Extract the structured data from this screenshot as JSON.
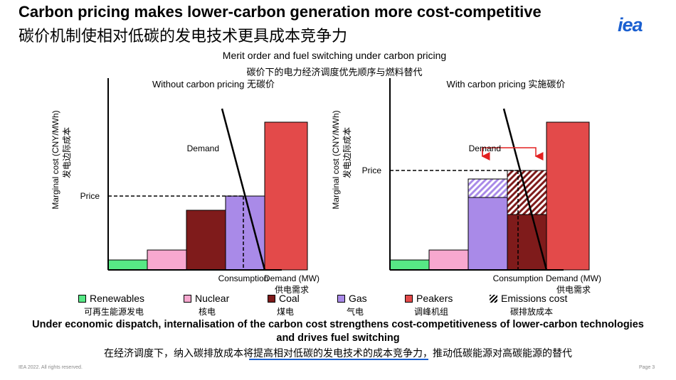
{
  "header": {
    "title_en": "Carbon pricing makes lower-carbon generation more cost-competitive",
    "title_zh": "碳价机制使相对低碳的发电技术更具成本竞争力",
    "logo": "iea"
  },
  "figure": {
    "title_en": "Merit order and fuel switching under carbon pricing",
    "title_zh": "碳价下的电力经济调度优先顺序与燃料替代"
  },
  "colors": {
    "Renewables": "#57e885",
    "Nuclear": "#f7a8cf",
    "Coal": "#7f1b1b",
    "Gas": "#a98ae8",
    "Peakers": "#e34a4a",
    "Emissions cost": "#7f1b1b"
  },
  "chart_data": [
    {
      "type": "bar",
      "title": "Without carbon pricing 无碳价",
      "ylabel": "Marginal cost (CNY/MWh)",
      "ylabel_zh": "发电边际成本",
      "xlabel": "Demand (MW)",
      "xlabel_zh": "供电需求",
      "price_label": "Price",
      "demand_label": "Demand",
      "consumption_label": "Consumption",
      "xlim": [
        0,
        240
      ],
      "ylim": [
        0,
        270
      ],
      "series": [
        {
          "name": "Renewables",
          "x0": 0,
          "x1": 55,
          "value": 14
        },
        {
          "name": "Nuclear",
          "x0": 55,
          "x1": 110,
          "value": 28
        },
        {
          "name": "Coal",
          "x0": 110,
          "x1": 165,
          "value": 84
        },
        {
          "name": "Gas",
          "x0": 165,
          "x1": 220,
          "value": 104
        },
        {
          "name": "Peakers",
          "x0": 220,
          "x1": 280,
          "value": 208
        }
      ],
      "demand_line": [
        [
          160,
          227
        ],
        [
          220,
          0
        ]
      ],
      "price": 104,
      "consumption": 190
    },
    {
      "type": "bar",
      "title": "With carbon pricing 实施碳价",
      "ylabel": "Marginal cost (CNY/MWh)",
      "ylabel_zh": "发电边际成本",
      "xlabel": "Demand (MW)",
      "xlabel_zh": "供电需求",
      "price_label": "Price",
      "demand_label": "Demand",
      "consumption_label": "Consumption",
      "xlim": [
        0,
        240
      ],
      "ylim": [
        0,
        270
      ],
      "series": [
        {
          "name": "Renewables",
          "x0": 0,
          "x1": 55,
          "value": 14,
          "emissions": 0
        },
        {
          "name": "Nuclear",
          "x0": 55,
          "x1": 110,
          "value": 28,
          "emissions": 0
        },
        {
          "name": "Gas",
          "x0": 110,
          "x1": 165,
          "value": 102,
          "emissions": 26
        },
        {
          "name": "Coal",
          "x0": 165,
          "x1": 220,
          "value": 78,
          "emissions": 62
        },
        {
          "name": "Peakers",
          "x0": 220,
          "x1": 280,
          "value": 208,
          "emissions": 0
        }
      ],
      "demand_line": [
        [
          160,
          227
        ],
        [
          220,
          0
        ]
      ],
      "price": 140,
      "consumption": 180,
      "switch_arrow": [
        [
          130,
          172
        ],
        [
          205,
          172
        ]
      ]
    }
  ],
  "legend": [
    {
      "name": "Renewables",
      "zh": "可再生能源发电",
      "swatch": "#57e885"
    },
    {
      "name": "Nuclear",
      "zh": "核电",
      "swatch": "#f7a8cf"
    },
    {
      "name": "Coal",
      "zh": "煤电",
      "swatch": "#7f1b1b"
    },
    {
      "name": "Gas",
      "zh": "气电",
      "swatch": "#a98ae8"
    },
    {
      "name": "Peakers",
      "zh": "调峰机组",
      "swatch": "#e34a4a"
    },
    {
      "name": "Emissions cost",
      "zh": "碳排放成本",
      "swatch": "hatch"
    }
  ],
  "summary": {
    "en": "Under economic dispatch, internalisation of the carbon cost strengthens cost-competitiveness of lower-carbon technologies and drives fuel switching",
    "zh": "在经济调度下，纳入碳排放成本将提高相对低碳的发电技术的成本竞争力，推动低碳能源对高碳能源的替代"
  },
  "footer": {
    "left": "IEA 2022. All rights reserved.",
    "right": "Page 3"
  }
}
